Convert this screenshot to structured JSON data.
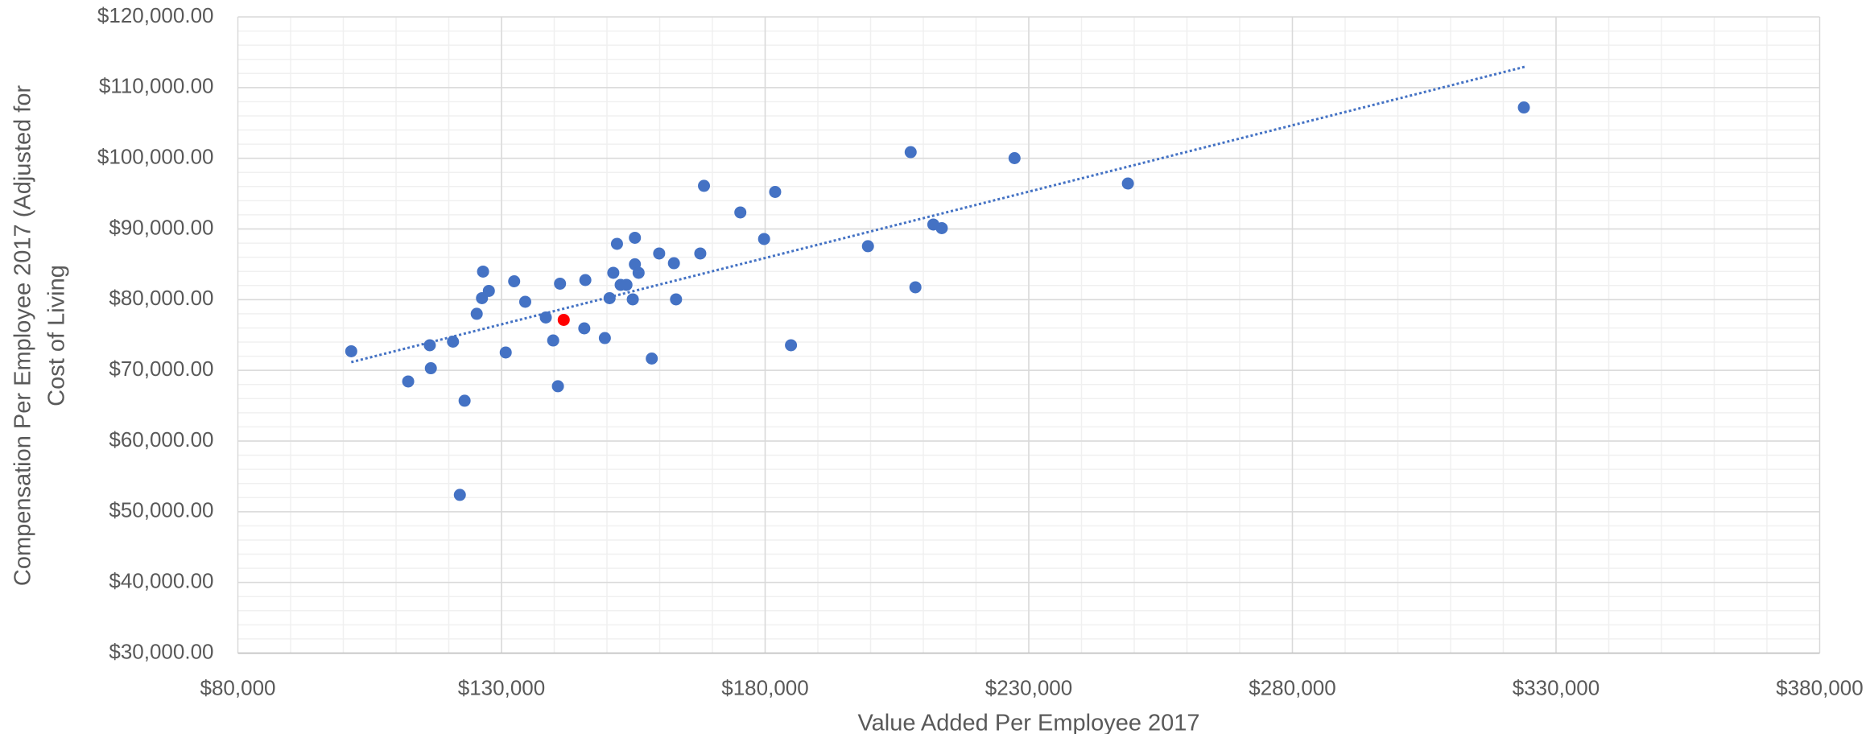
{
  "chart_data": {
    "type": "scatter",
    "xlabel": "Value Added Per Employee 2017",
    "ylabel": [
      "Compensation Per Employee 2017 (Adjusted for",
      "Cost of Living"
    ],
    "xlim": [
      80000,
      380000
    ],
    "ylim": [
      30000,
      120000
    ],
    "xticks": [
      {
        "value": 80000,
        "label": "$80,000"
      },
      {
        "value": 130000,
        "label": "$130,000"
      },
      {
        "value": 180000,
        "label": "$180,000"
      },
      {
        "value": 230000,
        "label": "$230,000"
      },
      {
        "value": 280000,
        "label": "$280,000"
      },
      {
        "value": 330000,
        "label": "$330,000"
      },
      {
        "value": 380000,
        "label": "$380,000"
      }
    ],
    "yticks": [
      {
        "value": 30000,
        "label": "$30,000.00"
      },
      {
        "value": 40000,
        "label": "$40,000.00"
      },
      {
        "value": 50000,
        "label": "$50,000.00"
      },
      {
        "value": 60000,
        "label": "$60,000.00"
      },
      {
        "value": 70000,
        "label": "$70,000.00"
      },
      {
        "value": 80000,
        "label": "$80,000.00"
      },
      {
        "value": 90000,
        "label": "$90,000.00"
      },
      {
        "value": 100000,
        "label": "$100,000.00"
      },
      {
        "value": 110000,
        "label": "$110,000.00"
      },
      {
        "value": 120000,
        "label": "$120,000.00"
      }
    ],
    "grid": true,
    "minor_grid": {
      "x_step": 10000,
      "y_step": 2000
    },
    "series": [
      {
        "color": "#4472c4",
        "x": [
          101500,
          112300,
          116400,
          116600,
          120800,
          122100,
          123000,
          125300,
          126300,
          126500,
          127600,
          130800,
          132400,
          134500,
          138400,
          139800,
          140700,
          141100,
          145700,
          145900,
          149600,
          150500,
          151200,
          151900,
          152600,
          153700,
          154900,
          155300,
          155300,
          156000,
          158500,
          159900,
          162700,
          163100,
          167700,
          168400,
          175300,
          179800,
          181900,
          184900,
          199500,
          207600,
          208500,
          211900,
          213500,
          227300,
          248800,
          323900
        ],
        "values": [
          72700,
          68430,
          73550,
          70300,
          74060,
          52380,
          65700,
          78000,
          80210,
          83970,
          81240,
          72530,
          82600,
          79700,
          77480,
          74230,
          67750,
          82260,
          75940,
          82770,
          74570,
          80210,
          83800,
          87900,
          82090,
          82090,
          80040,
          88750,
          85000,
          83800,
          71670,
          86530,
          85160,
          80040,
          86530,
          96100,
          92340,
          88580,
          95240,
          73550,
          87560,
          100870,
          81750,
          90630,
          90120,
          100020,
          96430,
          107190
        ]
      },
      {
        "color": "#ff0000",
        "x": [
          141800
        ],
        "values": [
          77140
        ]
      }
    ],
    "trendline": {
      "color": "#4472c4",
      "x": [
        101500,
        324400
      ],
      "values": [
        71160,
        113000
      ]
    }
  }
}
